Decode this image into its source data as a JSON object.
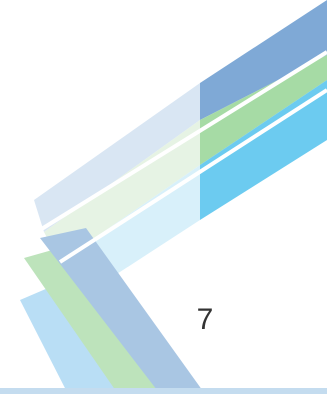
{
  "page": {
    "page_number": "7"
  },
  "decoration": {
    "band_colors": [
      "#6f9fd0",
      "#9fd6a0",
      "#61c6ee"
    ],
    "bottom_bar_color": "#c4dcef"
  }
}
